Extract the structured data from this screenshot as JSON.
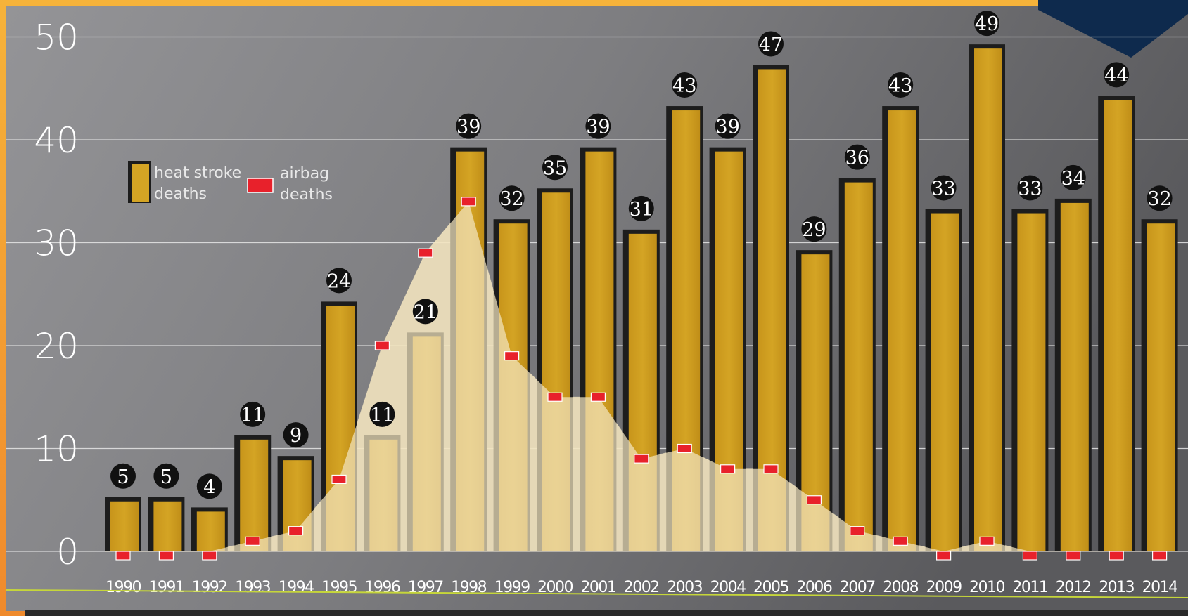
{
  "chart_data": {
    "type": "bar",
    "categories": [
      "1990",
      "1991",
      "1992",
      "1993",
      "1994",
      "1995",
      "1996",
      "1997",
      "1998",
      "1999",
      "2000",
      "2001",
      "2002",
      "2003",
      "2004",
      "2005",
      "2006",
      "2007",
      "2008",
      "2009",
      "2010",
      "2011",
      "2012",
      "2013",
      "2014"
    ],
    "series": [
      {
        "name": "heat stroke deaths",
        "type": "bar",
        "color": "#cc9a1e",
        "values": [
          5,
          5,
          4,
          11,
          9,
          24,
          11,
          21,
          39,
          32,
          35,
          39,
          31,
          43,
          39,
          47,
          29,
          36,
          43,
          33,
          49,
          33,
          34,
          44,
          32
        ]
      },
      {
        "name": "airbag deaths",
        "type": "area",
        "color": "#e8212b",
        "values": [
          0,
          0,
          0,
          1,
          2,
          7,
          20,
          29,
          34,
          19,
          15,
          15,
          9,
          10,
          8,
          8,
          5,
          2,
          1,
          0,
          1,
          0,
          0,
          0,
          0
        ]
      }
    ],
    "y_ticks": [
      "0",
      "10",
      "20",
      "30",
      "40",
      "50"
    ],
    "ylim": [
      0,
      50
    ],
    "grid": true,
    "legend": {
      "placement": "top-left",
      "heat_line1": "heat stroke",
      "heat_line2": "deaths",
      "airbag_line1": "airbag",
      "airbag_line2": "deaths"
    },
    "colors": {
      "background_light": "#8f8f91",
      "background_dark": "#5c5c5f",
      "area_fill": "#f1e1bb",
      "frame_orange": "#f2a23a",
      "navy_accent": "#0e2a4d",
      "baseline_green": "#c6d63a"
    }
  }
}
